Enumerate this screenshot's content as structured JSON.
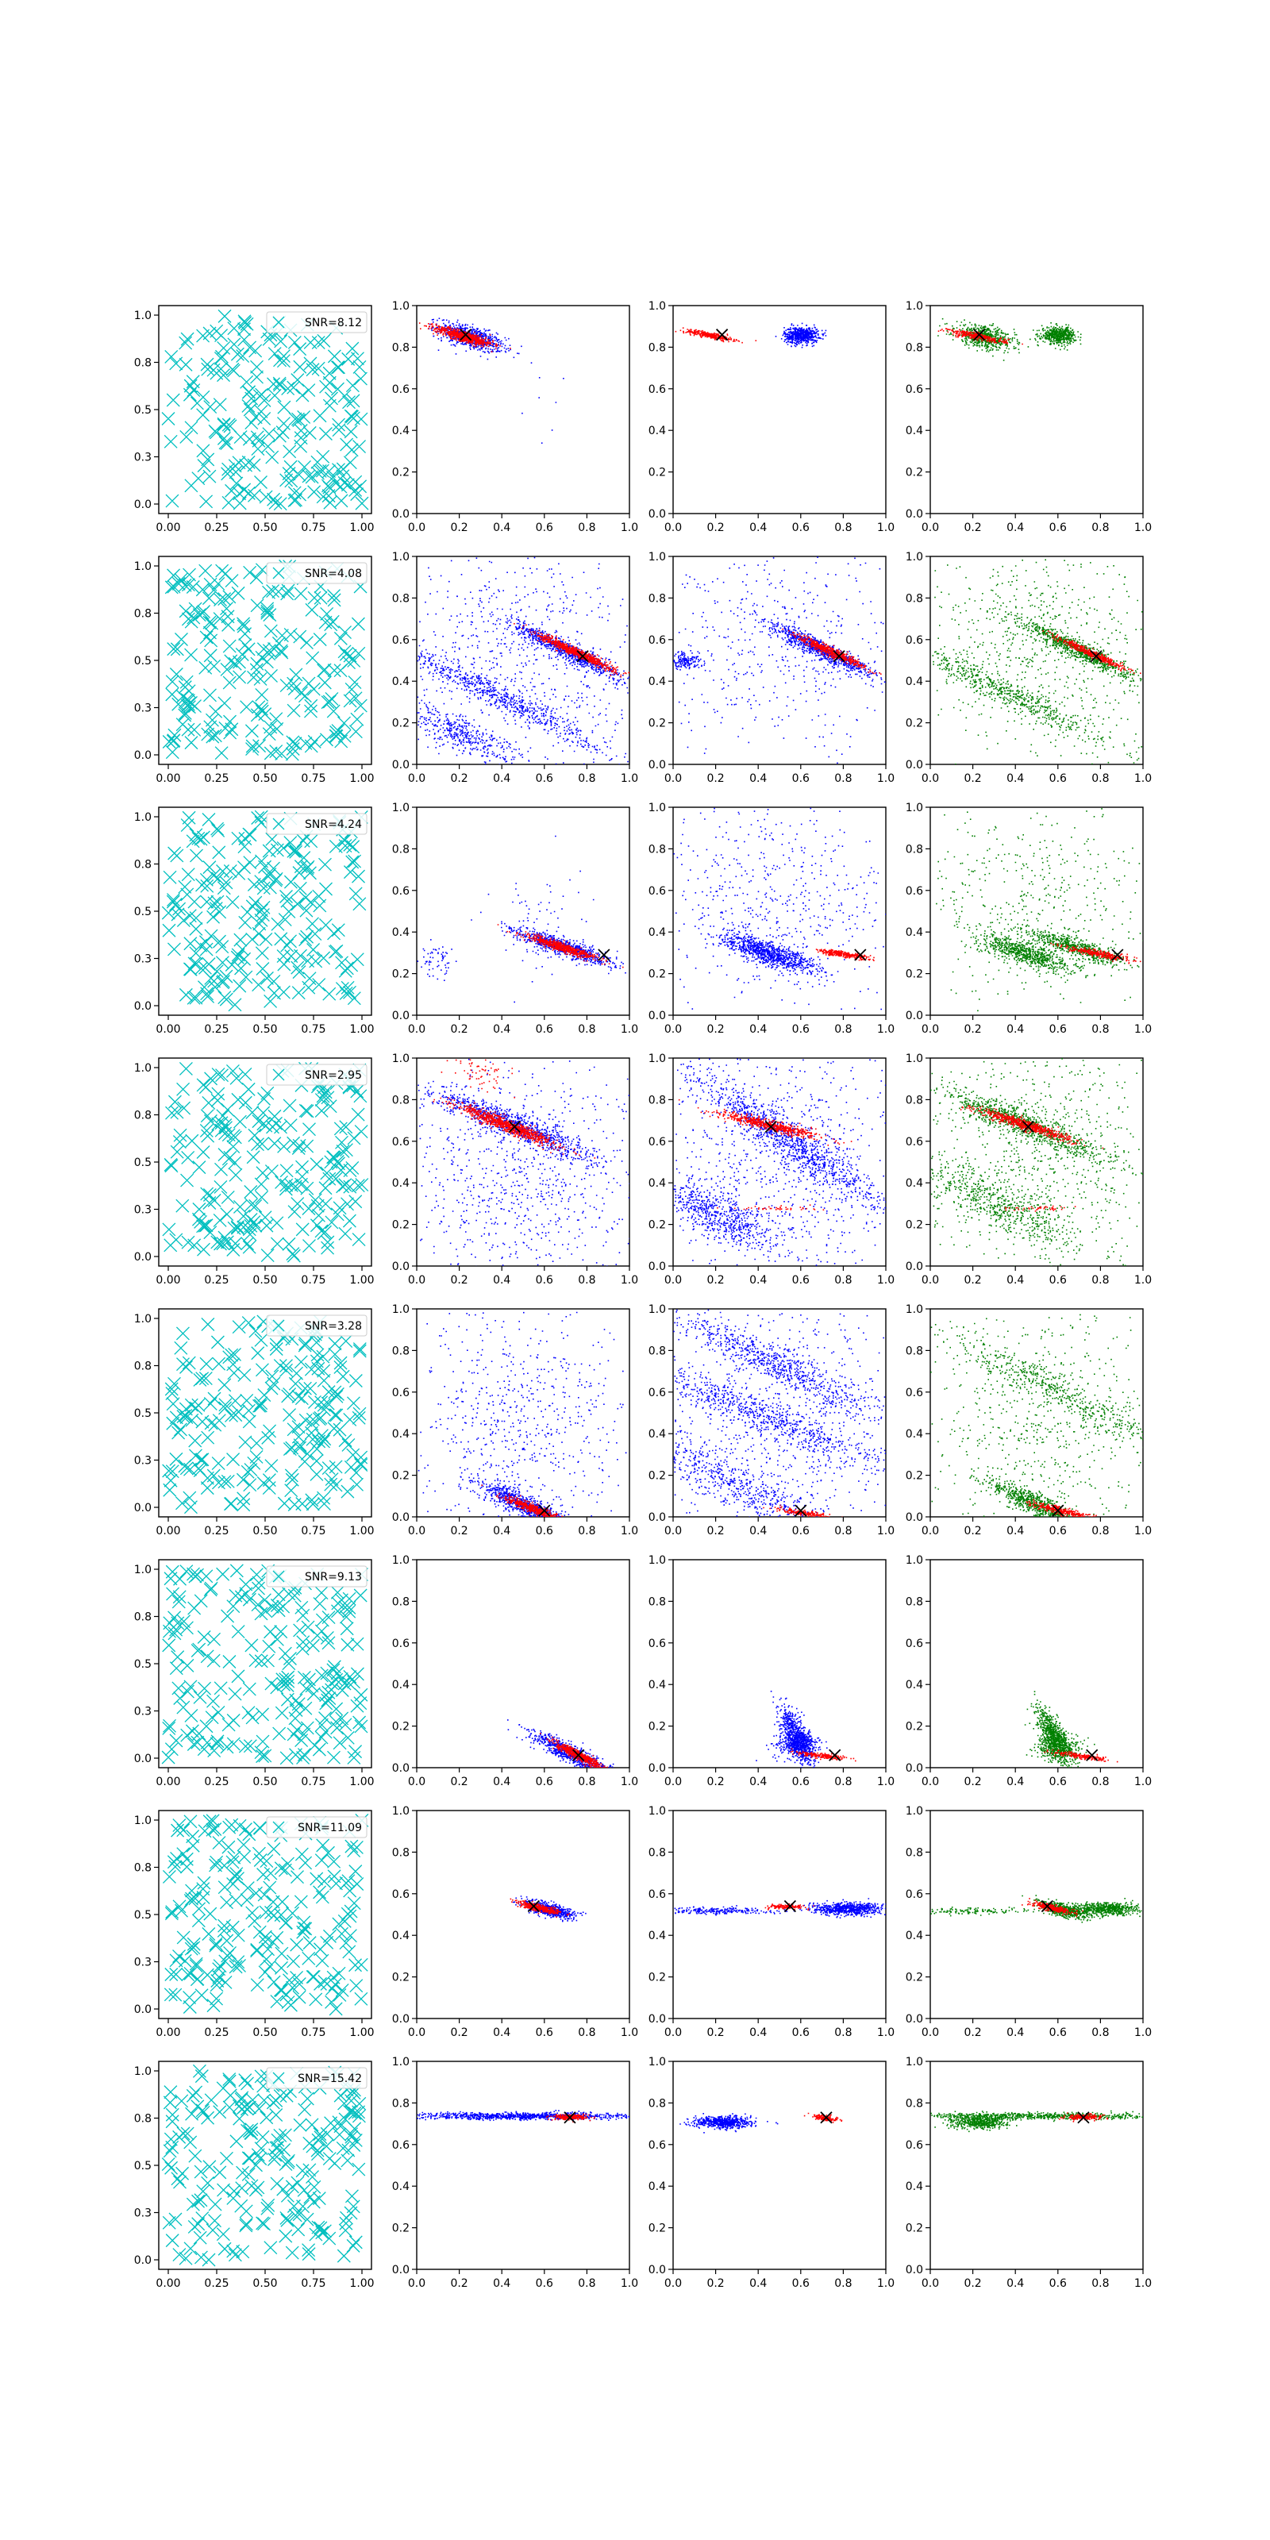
{
  "figure": {
    "rows": 8,
    "cols": 4,
    "background": "#ffffff",
    "colors": {
      "noise_markers": "#00bfbf",
      "blue_points": "#0000ff",
      "red_points": "#ff0000",
      "green_points": "#008000",
      "true_marker": "#000000",
      "axes": "#000000",
      "legend_edge": "#cccccc"
    }
  },
  "chart_data": {
    "type": "scatter",
    "grid": false,
    "first_column_ticks": [
      "0.00",
      "0.25",
      "0.50",
      "0.75",
      "1.00"
    ],
    "other_column_x_ticks": [
      "0.0",
      "0.2",
      "0.4",
      "0.6",
      "0.8",
      "1.0"
    ],
    "y_ticks": [
      "0.0",
      "0.2",
      "0.4",
      "0.6",
      "0.8",
      "1.0"
    ],
    "xlim": [
      0,
      1
    ],
    "ylim": [
      0,
      1
    ],
    "legend_placement": "top-right",
    "column_colors": [
      "cyan",
      "blue+red",
      "blue+red",
      "green+red"
    ],
    "rows": [
      {
        "snr_label": "SNR=8.12",
        "true_point": [
          0.23,
          0.86
        ],
        "panel2": {
          "blue": [
            {
              "x": 0.25,
              "y": 0.85,
              "sx": 0.08,
              "sy": 0.025,
              "t": -0.2,
              "n": 700
            },
            {
              "x": 0.6,
              "y": 0.55,
              "sx": 0.05,
              "sy": 0.15,
              "t": 0,
              "n": 8
            }
          ],
          "red": [
            {
              "x": 0.22,
              "y": 0.855,
              "sx": 0.07,
              "sy": 0.012,
              "t": -0.18,
              "n": 700
            }
          ]
        },
        "panel3": {
          "blue": [
            {
              "x": 0.6,
              "y": 0.86,
              "sx": 0.04,
              "sy": 0.02,
              "t": 0,
              "n": 600
            }
          ],
          "red": [
            {
              "x": 0.17,
              "y": 0.86,
              "sx": 0.06,
              "sy": 0.007,
              "t": -0.12,
              "n": 300
            }
          ]
        },
        "panel4": {
          "green": [
            {
              "x": 0.25,
              "y": 0.85,
              "sx": 0.07,
              "sy": 0.025,
              "t": -0.15,
              "n": 600
            },
            {
              "x": 0.6,
              "y": 0.86,
              "sx": 0.04,
              "sy": 0.02,
              "t": 0,
              "n": 500
            }
          ],
          "red": [
            {
              "x": 0.22,
              "y": 0.855,
              "sx": 0.07,
              "sy": 0.008,
              "t": -0.12,
              "n": 300
            }
          ]
        }
      },
      {
        "snr_label": "SNR=4.08",
        "true_point": [
          0.78,
          0.52
        ],
        "panel2": {
          "blue": [
            {
              "x": 0.7,
              "y": 0.55,
              "sx": 0.15,
              "sy": 0.02,
              "t": -0.3,
              "n": 800
            },
            {
              "x": 0.35,
              "y": 0.35,
              "sx": 0.3,
              "sy": 0.03,
              "t": -0.3,
              "n": 700
            },
            {
              "x": 0.2,
              "y": 0.15,
              "sx": 0.15,
              "sy": 0.04,
              "t": -0.3,
              "n": 400
            },
            {
              "x": 0.5,
              "y": 0.5,
              "sx": 0.3,
              "sy": 0.3,
              "t": 0,
              "n": 700
            }
          ],
          "red": [
            {
              "x": 0.75,
              "y": 0.54,
              "sx": 0.1,
              "sy": 0.01,
              "t": -0.28,
              "n": 700
            }
          ]
        },
        "panel3": {
          "blue": [
            {
              "x": 0.7,
              "y": 0.55,
              "sx": 0.14,
              "sy": 0.02,
              "t": -0.3,
              "n": 800
            },
            {
              "x": 0.05,
              "y": 0.5,
              "sx": 0.04,
              "sy": 0.02,
              "t": 0,
              "n": 150
            },
            {
              "x": 0.5,
              "y": 0.55,
              "sx": 0.3,
              "sy": 0.25,
              "t": 0,
              "n": 500
            }
          ],
          "red": [
            {
              "x": 0.74,
              "y": 0.545,
              "sx": 0.09,
              "sy": 0.01,
              "t": -0.28,
              "n": 500
            }
          ]
        },
        "panel4": {
          "green": [
            {
              "x": 0.7,
              "y": 0.55,
              "sx": 0.15,
              "sy": 0.02,
              "t": -0.3,
              "n": 800
            },
            {
              "x": 0.35,
              "y": 0.35,
              "sx": 0.3,
              "sy": 0.03,
              "t": -0.3,
              "n": 600
            },
            {
              "x": 0.5,
              "y": 0.55,
              "sx": 0.3,
              "sy": 0.25,
              "t": 0,
              "n": 700
            }
          ],
          "red": [
            {
              "x": 0.76,
              "y": 0.535,
              "sx": 0.09,
              "sy": 0.008,
              "t": -0.28,
              "n": 400
            }
          ]
        }
      },
      {
        "snr_label": "SNR=4.24",
        "true_point": [
          0.88,
          0.29
        ],
        "panel2": {
          "blue": [
            {
              "x": 0.68,
              "y": 0.33,
              "sx": 0.12,
              "sy": 0.02,
              "t": -0.2,
              "n": 800
            },
            {
              "x": 0.1,
              "y": 0.25,
              "sx": 0.05,
              "sy": 0.04,
              "t": 0,
              "n": 60
            },
            {
              "x": 0.6,
              "y": 0.45,
              "sx": 0.1,
              "sy": 0.15,
              "t": 0,
              "n": 80
            }
          ],
          "red": [
            {
              "x": 0.68,
              "y": 0.33,
              "sx": 0.09,
              "sy": 0.01,
              "t": -0.2,
              "n": 600
            }
          ]
        },
        "panel3": {
          "blue": [
            {
              "x": 0.45,
              "y": 0.3,
              "sx": 0.12,
              "sy": 0.025,
              "t": -0.2,
              "n": 900
            },
            {
              "x": 0.45,
              "y": 0.55,
              "sx": 0.3,
              "sy": 0.25,
              "t": 0,
              "n": 600
            }
          ],
          "red": [
            {
              "x": 0.8,
              "y": 0.295,
              "sx": 0.06,
              "sy": 0.007,
              "t": -0.1,
              "n": 300
            }
          ]
        },
        "panel4": {
          "green": [
            {
              "x": 0.45,
              "y": 0.3,
              "sx": 0.12,
              "sy": 0.025,
              "t": -0.2,
              "n": 700
            },
            {
              "x": 0.68,
              "y": 0.33,
              "sx": 0.12,
              "sy": 0.02,
              "t": -0.2,
              "n": 600
            },
            {
              "x": 0.45,
              "y": 0.55,
              "sx": 0.3,
              "sy": 0.25,
              "t": 0,
              "n": 500
            }
          ],
          "red": [
            {
              "x": 0.78,
              "y": 0.3,
              "sx": 0.08,
              "sy": 0.008,
              "t": -0.12,
              "n": 300
            }
          ]
        }
      },
      {
        "snr_label": "SNR=2.95",
        "true_point": [
          0.46,
          0.67
        ],
        "panel2": {
          "blue": [
            {
              "x": 0.45,
              "y": 0.68,
              "sx": 0.2,
              "sy": 0.03,
              "t": -0.25,
              "n": 900
            },
            {
              "x": 0.5,
              "y": 0.4,
              "sx": 0.3,
              "sy": 0.3,
              "t": 0,
              "n": 900
            }
          ],
          "red": [
            {
              "x": 0.42,
              "y": 0.68,
              "sx": 0.12,
              "sy": 0.015,
              "t": -0.25,
              "n": 800
            },
            {
              "x": 0.3,
              "y": 0.93,
              "sx": 0.08,
              "sy": 0.04,
              "t": -0.2,
              "n": 60
            }
          ]
        },
        "panel3": {
          "blue": [
            {
              "x": 0.55,
              "y": 0.6,
              "sx": 0.3,
              "sy": 0.04,
              "t": -0.4,
              "n": 1000
            },
            {
              "x": 0.2,
              "y": 0.25,
              "sx": 0.15,
              "sy": 0.05,
              "t": -0.3,
              "n": 600
            },
            {
              "x": 0.5,
              "y": 0.5,
              "sx": 0.3,
              "sy": 0.3,
              "t": 0,
              "n": 900
            }
          ],
          "red": [
            {
              "x": 0.45,
              "y": 0.68,
              "sx": 0.12,
              "sy": 0.012,
              "t": -0.15,
              "n": 600
            },
            {
              "x": 0.5,
              "y": 0.28,
              "sx": 0.1,
              "sy": 0.005,
              "t": 0,
              "n": 40
            }
          ]
        },
        "panel4": {
          "green": [
            {
              "x": 0.45,
              "y": 0.68,
              "sx": 0.2,
              "sy": 0.03,
              "t": -0.25,
              "n": 900
            },
            {
              "x": 0.3,
              "y": 0.3,
              "sx": 0.2,
              "sy": 0.05,
              "t": -0.3,
              "n": 500
            },
            {
              "x": 0.5,
              "y": 0.5,
              "sx": 0.3,
              "sy": 0.3,
              "t": 0,
              "n": 900
            }
          ],
          "red": [
            {
              "x": 0.45,
              "y": 0.68,
              "sx": 0.12,
              "sy": 0.012,
              "t": -0.2,
              "n": 600
            },
            {
              "x": 0.5,
              "y": 0.28,
              "sx": 0.08,
              "sy": 0.005,
              "t": 0,
              "n": 40
            }
          ]
        }
      },
      {
        "snr_label": "SNR=3.28",
        "true_point": [
          0.6,
          0.03
        ],
        "panel2": {
          "blue": [
            {
              "x": 0.5,
              "y": 0.06,
              "sx": 0.12,
              "sy": 0.025,
              "t": -0.3,
              "n": 800
            },
            {
              "x": 0.5,
              "y": 0.45,
              "sx": 0.25,
              "sy": 0.3,
              "t": 0,
              "n": 700
            }
          ],
          "red": [
            {
              "x": 0.55,
              "y": 0.04,
              "sx": 0.08,
              "sy": 0.01,
              "t": -0.25,
              "n": 500
            }
          ]
        },
        "panel3": {
          "blue": [
            {
              "x": 0.45,
              "y": 0.75,
              "sx": 0.3,
              "sy": 0.04,
              "t": -0.3,
              "n": 700
            },
            {
              "x": 0.4,
              "y": 0.5,
              "sx": 0.35,
              "sy": 0.04,
              "t": -0.25,
              "n": 700
            },
            {
              "x": 0.3,
              "y": 0.15,
              "sx": 0.3,
              "sy": 0.05,
              "t": -0.3,
              "n": 600
            },
            {
              "x": 0.5,
              "y": 0.5,
              "sx": 0.3,
              "sy": 0.3,
              "t": 0,
              "n": 800
            }
          ],
          "red": [
            {
              "x": 0.62,
              "y": 0.02,
              "sx": 0.06,
              "sy": 0.007,
              "t": -0.1,
              "n": 200
            }
          ]
        },
        "panel4": {
          "green": [
            {
              "x": 0.5,
              "y": 0.06,
              "sx": 0.12,
              "sy": 0.025,
              "t": -0.3,
              "n": 700
            },
            {
              "x": 0.6,
              "y": 0.6,
              "sx": 0.3,
              "sy": 0.04,
              "t": -0.3,
              "n": 500
            },
            {
              "x": 0.5,
              "y": 0.45,
              "sx": 0.3,
              "sy": 0.3,
              "t": 0,
              "n": 700
            }
          ],
          "red": [
            {
              "x": 0.62,
              "y": 0.03,
              "sx": 0.07,
              "sy": 0.008,
              "t": -0.15,
              "n": 300
            }
          ]
        }
      },
      {
        "snr_label": "SNR=9.13",
        "true_point": [
          0.76,
          0.06
        ],
        "panel2": {
          "blue": [
            {
              "x": 0.72,
              "y": 0.07,
              "sx": 0.1,
              "sy": 0.02,
              "t": -0.3,
              "n": 800
            }
          ],
          "red": [
            {
              "x": 0.76,
              "y": 0.06,
              "sx": 0.07,
              "sy": 0.01,
              "t": -0.3,
              "n": 600
            }
          ]
        },
        "panel3": {
          "blue": [
            {
              "x": 0.58,
              "y": 0.15,
              "sx": 0.025,
              "sy": 0.08,
              "t": 0.3,
              "n": 700
            },
            {
              "x": 0.58,
              "y": 0.11,
              "sx": 0.05,
              "sy": 0.03,
              "t": 0,
              "n": 400
            }
          ],
          "red": [
            {
              "x": 0.7,
              "y": 0.06,
              "sx": 0.06,
              "sy": 0.006,
              "t": -0.08,
              "n": 200
            }
          ]
        },
        "panel4": {
          "green": [
            {
              "x": 0.58,
              "y": 0.15,
              "sx": 0.025,
              "sy": 0.08,
              "t": 0.3,
              "n": 700
            },
            {
              "x": 0.6,
              "y": 0.1,
              "sx": 0.05,
              "sy": 0.03,
              "t": 0,
              "n": 400
            }
          ],
          "red": [
            {
              "x": 0.7,
              "y": 0.06,
              "sx": 0.06,
              "sy": 0.006,
              "t": -0.1,
              "n": 200
            }
          ]
        }
      },
      {
        "snr_label": "SNR=11.09",
        "true_point": [
          0.55,
          0.54
        ],
        "panel2": {
          "blue": [
            {
              "x": 0.62,
              "y": 0.525,
              "sx": 0.06,
              "sy": 0.015,
              "t": -0.15,
              "n": 600
            }
          ],
          "red": [
            {
              "x": 0.57,
              "y": 0.535,
              "sx": 0.05,
              "sy": 0.008,
              "t": -0.15,
              "n": 400
            }
          ]
        },
        "panel3": {
          "blue": [
            {
              "x": 0.82,
              "y": 0.53,
              "sx": 0.08,
              "sy": 0.015,
              "t": 0,
              "n": 700
            },
            {
              "x": 0.2,
              "y": 0.52,
              "sx": 0.15,
              "sy": 0.008,
              "t": 0,
              "n": 250
            }
          ],
          "red": [
            {
              "x": 0.53,
              "y": 0.54,
              "sx": 0.04,
              "sy": 0.006,
              "t": 0,
              "n": 150
            }
          ]
        },
        "panel4": {
          "green": [
            {
              "x": 0.82,
              "y": 0.53,
              "sx": 0.08,
              "sy": 0.015,
              "t": 0,
              "n": 600
            },
            {
              "x": 0.62,
              "y": 0.525,
              "sx": 0.06,
              "sy": 0.015,
              "t": -0.15,
              "n": 500
            },
            {
              "x": 0.15,
              "y": 0.52,
              "sx": 0.15,
              "sy": 0.008,
              "t": 0,
              "n": 150
            }
          ],
          "red": [
            {
              "x": 0.57,
              "y": 0.535,
              "sx": 0.05,
              "sy": 0.008,
              "t": -0.15,
              "n": 300
            }
          ]
        }
      },
      {
        "snr_label": "SNR=15.42",
        "true_point": [
          0.72,
          0.73
        ],
        "panel2": {
          "blue": [
            {
              "x": 0.5,
              "y": 0.74,
              "sx": 0.3,
              "sy": 0.008,
              "t": 0,
              "n": 1000
            }
          ],
          "red": [
            {
              "x": 0.72,
              "y": 0.735,
              "sx": 0.04,
              "sy": 0.006,
              "t": 0,
              "n": 250
            }
          ]
        },
        "panel3": {
          "blue": [
            {
              "x": 0.23,
              "y": 0.71,
              "sx": 0.07,
              "sy": 0.015,
              "t": 0,
              "n": 600
            }
          ],
          "red": [
            {
              "x": 0.71,
              "y": 0.73,
              "sx": 0.03,
              "sy": 0.006,
              "t": -0.1,
              "n": 150
            }
          ]
        },
        "panel4": {
          "green": [
            {
              "x": 0.5,
              "y": 0.74,
              "sx": 0.3,
              "sy": 0.008,
              "t": 0,
              "n": 700
            },
            {
              "x": 0.23,
              "y": 0.71,
              "sx": 0.07,
              "sy": 0.015,
              "t": 0,
              "n": 500
            }
          ],
          "red": [
            {
              "x": 0.72,
              "y": 0.735,
              "sx": 0.04,
              "sy": 0.006,
              "t": 0,
              "n": 200
            }
          ]
        }
      }
    ]
  }
}
